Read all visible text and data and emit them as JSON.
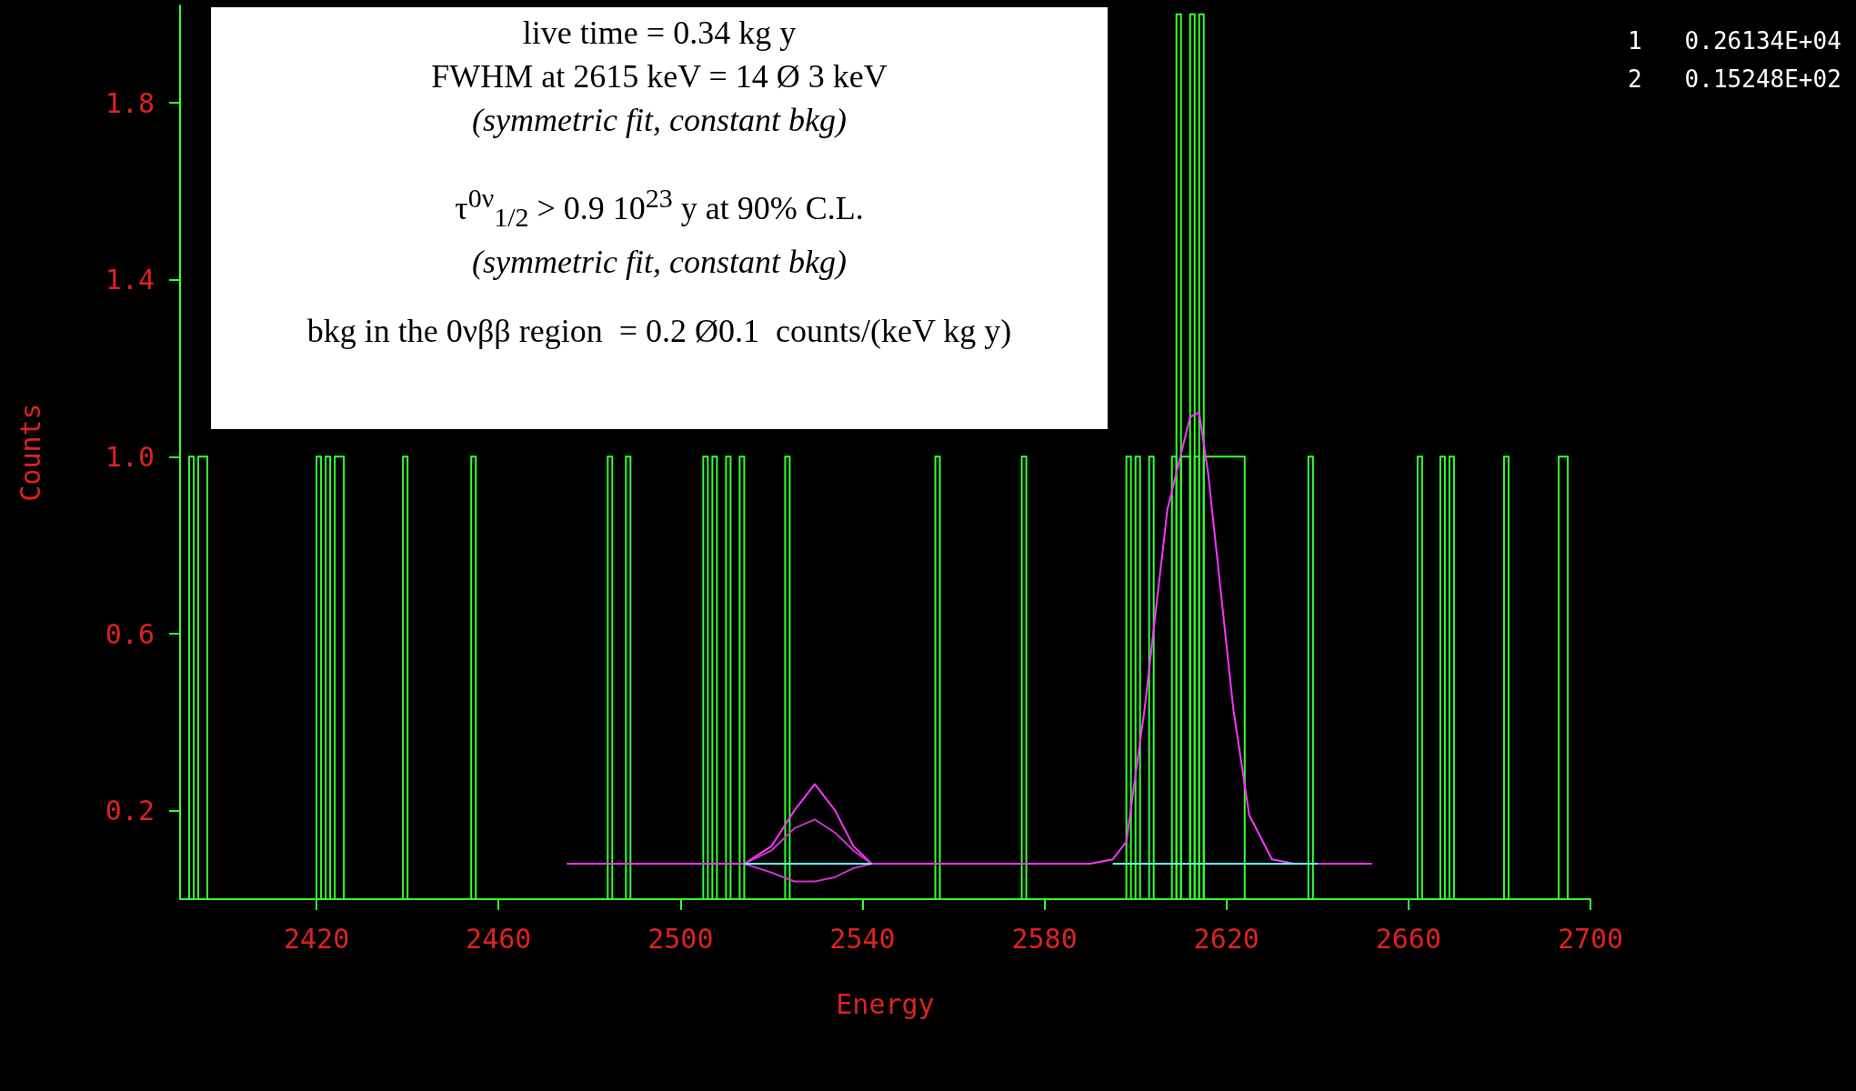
{
  "chart_data": {
    "type": "histogram",
    "xlabel": "Energy",
    "ylabel": "Counts",
    "color": "#33ff33",
    "bins": [
      2390,
      2392,
      2393,
      2394,
      2396,
      2420,
      2421,
      2422,
      2423,
      2424,
      2426,
      2439,
      2440,
      2454,
      2455,
      2484,
      2485,
      2488,
      2489,
      2505,
      2506,
      2507,
      2508,
      2510,
      2511,
      2513,
      2514,
      2523,
      2524,
      2556,
      2557,
      2575,
      2576,
      2598,
      2599,
      2600,
      2601,
      2603,
      2604,
      2608,
      2609,
      2610,
      2612,
      2613,
      2614,
      2615,
      2624,
      2638,
      2639,
      2662,
      2663,
      2667,
      2668,
      2669,
      2670,
      2681,
      2682,
      2693,
      2695,
      2700
    ],
    "values": [
      0,
      1,
      0,
      1,
      0,
      1,
      0,
      1,
      0,
      1,
      0,
      1,
      0,
      1,
      0,
      1,
      0,
      1,
      0,
      1,
      0,
      1,
      0,
      1,
      0,
      1,
      0,
      1,
      0,
      1,
      0,
      1,
      0,
      1,
      0,
      1,
      0,
      1,
      0,
      1,
      2,
      1,
      2,
      1,
      2,
      1,
      0,
      1,
      0,
      1,
      0,
      1,
      0,
      1,
      0,
      1,
      0,
      1,
      0
    ],
    "series": [
      {
        "type": "line",
        "color": "#ff33ff",
        "x": [
          2475,
          2590,
          2595,
          2598,
          2602,
          2607,
          2612,
          2614,
          2616,
          2621.5,
          2625,
          2630,
          2635,
          2652
        ],
        "values": [
          0.08,
          0.08,
          0.09,
          0.13,
          0.43,
          0.88,
          1.09,
          1.1,
          0.96,
          0.43,
          0.19,
          0.09,
          0.08,
          0.08
        ]
      },
      {
        "type": "line",
        "color": "#ff33ff",
        "x": [
          2514,
          2520,
          2525,
          2529.5,
          2534,
          2538,
          2542
        ],
        "values": [
          0.08,
          0.12,
          0.2,
          0.26,
          0.2,
          0.12,
          0.08
        ]
      },
      {
        "type": "line",
        "color": "#cc33cc",
        "x": [
          2514,
          2520,
          2525,
          2529.5,
          2534,
          2538,
          2542
        ],
        "values": [
          0.08,
          0.11,
          0.16,
          0.18,
          0.15,
          0.11,
          0.08
        ]
      },
      {
        "type": "line",
        "color": "#cc33cc",
        "x": [
          2514,
          2520,
          2525,
          2529.5,
          2534,
          2538,
          2542
        ],
        "values": [
          0.08,
          0.06,
          0.04,
          0.04,
          0.05,
          0.07,
          0.08
        ]
      },
      {
        "type": "line",
        "color": "#66ffff",
        "x": [
          2514,
          2542,
          2543,
          2595,
          2640
        ],
        "values": [
          0.08,
          0.08,
          null,
          0.08,
          0.08
        ]
      }
    ],
    "marker": "none",
    "xlim": [
      2390,
      2700
    ],
    "xticks": [
      2420,
      2460,
      2500,
      2540,
      2580,
      2620,
      2660,
      2700
    ],
    "ylim": [
      0,
      2.02
    ],
    "yticks": [
      0.2,
      0.6,
      {
        "value": 1,
        "label": "1.0"
      },
      1.4,
      1.8
    ],
    "grid": false,
    "legend": false,
    "annotations": [
      "live time = 0.34 kg y",
      "FWHM at 2615 keV = 14 Ø 3 keV",
      "(symmetric fit, constant bkg)",
      "τ$^{0ν}$$_{1/2}$ > 0.9 10$^{23}$ y at 90% C.L.",
      "(symmetric fit, constant bkg)",
      "bkg in the 0νββ region  = 0.2 Ø0.1  counts/(keV kg y)",
      "1   0.26134E+04",
      "2   0.15248E+02"
    ]
  }
}
